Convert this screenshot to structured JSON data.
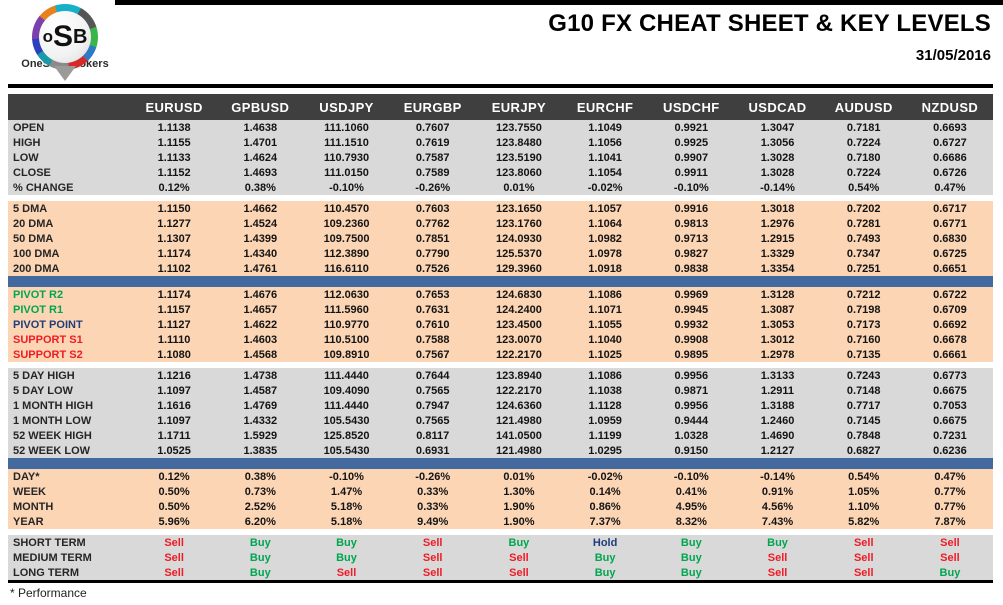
{
  "header": {
    "logo_text_o": "o",
    "logo_text_s": "S",
    "logo_text_b": "B",
    "logo_caption": "OneStopBrokers",
    "title": "G10 FX CHEAT SHEET & KEY LEVELS",
    "date": "31/05/2016"
  },
  "footer": {
    "note": "* Performance"
  },
  "colors": {
    "header_bar": "#3f3f3f",
    "gray_section": "#d9d9d9",
    "peach_section": "#fcd5b4",
    "blue_bar": "#426a9e",
    "buy_green": "#00a550",
    "sell_red": "#ee1c25",
    "hold_navy": "#1f3d7a"
  },
  "table": {
    "columns": [
      "EURUSD",
      "GPBUSD",
      "USDJPY",
      "EURGBP",
      "EURJPY",
      "EURCHF",
      "USDCHF",
      "USDCAD",
      "AUDUSD",
      "NZDUSD"
    ],
    "sections": [
      {
        "id": "ohlc",
        "type": "rows",
        "bg": "gray",
        "rows": [
          {
            "label": "OPEN",
            "values": [
              "1.1138",
              "1.4638",
              "111.1060",
              "0.7607",
              "123.7550",
              "1.1049",
              "0.9921",
              "1.3047",
              "0.7181",
              "0.6693"
            ]
          },
          {
            "label": "HIGH",
            "values": [
              "1.1155",
              "1.4701",
              "111.1510",
              "0.7619",
              "123.8480",
              "1.1056",
              "0.9925",
              "1.3056",
              "0.7224",
              "0.6727"
            ]
          },
          {
            "label": "LOW",
            "values": [
              "1.1133",
              "1.4624",
              "110.7930",
              "0.7587",
              "123.5190",
              "1.1041",
              "0.9907",
              "1.3028",
              "0.7180",
              "0.6686"
            ]
          },
          {
            "label": "CLOSE",
            "values": [
              "1.1152",
              "1.4693",
              "111.0150",
              "0.7589",
              "123.8060",
              "1.1054",
              "0.9911",
              "1.3028",
              "0.7224",
              "0.6726"
            ]
          },
          {
            "label": "% CHANGE",
            "values": [
              "0.12%",
              "0.38%",
              "-0.10%",
              "-0.26%",
              "0.01%",
              "-0.02%",
              "-0.10%",
              "-0.14%",
              "0.54%",
              "0.47%"
            ]
          }
        ]
      },
      {
        "id": "gap1",
        "type": "gap"
      },
      {
        "id": "dma",
        "type": "rows",
        "bg": "peach",
        "rows": [
          {
            "label": "5 DMA",
            "values": [
              "1.1150",
              "1.4662",
              "110.4570",
              "0.7603",
              "123.1650",
              "1.1057",
              "0.9916",
              "1.3018",
              "0.7202",
              "0.6717"
            ]
          },
          {
            "label": "20 DMA",
            "values": [
              "1.1277",
              "1.4524",
              "109.2360",
              "0.7762",
              "123.1760",
              "1.1064",
              "0.9813",
              "1.2976",
              "0.7281",
              "0.6771"
            ]
          },
          {
            "label": "50 DMA",
            "values": [
              "1.1307",
              "1.4399",
              "109.7500",
              "0.7851",
              "124.0930",
              "1.0982",
              "0.9713",
              "1.2915",
              "0.7493",
              "0.6830"
            ]
          },
          {
            "label": "100 DMA",
            "values": [
              "1.1174",
              "1.4340",
              "112.3890",
              "0.7790",
              "125.5370",
              "1.0978",
              "0.9827",
              "1.3329",
              "0.7347",
              "0.6725"
            ]
          },
          {
            "label": "200 DMA",
            "values": [
              "1.1102",
              "1.4761",
              "116.6110",
              "0.7526",
              "129.3960",
              "1.0918",
              "0.9838",
              "1.3354",
              "0.7251",
              "0.6651"
            ]
          }
        ]
      },
      {
        "id": "bar1",
        "type": "bar"
      },
      {
        "id": "pivots",
        "type": "rows",
        "bg": "peach",
        "rows": [
          {
            "label": "PIVOT R2",
            "label_color": "green",
            "values": [
              "1.1174",
              "1.4676",
              "112.0630",
              "0.7653",
              "124.6830",
              "1.1086",
              "0.9969",
              "1.3128",
              "0.7212",
              "0.6722"
            ]
          },
          {
            "label": "PIVOT R1",
            "label_color": "green",
            "values": [
              "1.1157",
              "1.4657",
              "111.5960",
              "0.7631",
              "124.2400",
              "1.1071",
              "0.9945",
              "1.3087",
              "0.7198",
              "0.6709"
            ]
          },
          {
            "label": "PIVOT POINT",
            "label_color": "navy",
            "values": [
              "1.1127",
              "1.4622",
              "110.9770",
              "0.7610",
              "123.4500",
              "1.1055",
              "0.9932",
              "1.3053",
              "0.7173",
              "0.6692"
            ]
          },
          {
            "label": "SUPPORT S1",
            "label_color": "red",
            "values": [
              "1.1110",
              "1.4603",
              "110.5100",
              "0.7588",
              "123.0070",
              "1.1040",
              "0.9908",
              "1.3012",
              "0.7160",
              "0.6678"
            ]
          },
          {
            "label": "SUPPORT S2",
            "label_color": "red",
            "values": [
              "1.1080",
              "1.4568",
              "109.8910",
              "0.7567",
              "122.2170",
              "1.1025",
              "0.9895",
              "1.2978",
              "0.7135",
              "0.6661"
            ]
          }
        ]
      },
      {
        "id": "gap2",
        "type": "gap"
      },
      {
        "id": "ranges",
        "type": "rows",
        "bg": "gray",
        "rows": [
          {
            "label": "5 DAY HIGH",
            "values": [
              "1.1216",
              "1.4738",
              "111.4440",
              "0.7644",
              "123.8940",
              "1.1086",
              "0.9956",
              "1.3133",
              "0.7243",
              "0.6773"
            ]
          },
          {
            "label": "5 DAY LOW",
            "values": [
              "1.1097",
              "1.4587",
              "109.4090",
              "0.7565",
              "122.2170",
              "1.1038",
              "0.9871",
              "1.2911",
              "0.7148",
              "0.6675"
            ]
          },
          {
            "label": "1 MONTH HIGH",
            "values": [
              "1.1616",
              "1.4769",
              "111.4440",
              "0.7947",
              "124.6360",
              "1.1128",
              "0.9956",
              "1.3188",
              "0.7717",
              "0.7053"
            ]
          },
          {
            "label": "1 MONTH LOW",
            "values": [
              "1.1097",
              "1.4332",
              "105.5430",
              "0.7565",
              "121.4980",
              "1.0959",
              "0.9444",
              "1.2460",
              "0.7145",
              "0.6675"
            ]
          },
          {
            "label": "52 WEEK HIGH",
            "values": [
              "1.1711",
              "1.5929",
              "125.8520",
              "0.8117",
              "141.0500",
              "1.1199",
              "1.0328",
              "1.4690",
              "0.7848",
              "0.7231"
            ]
          },
          {
            "label": "52 WEEK LOW",
            "values": [
              "1.0525",
              "1.3835",
              "105.5430",
              "0.6931",
              "121.4980",
              "1.0295",
              "0.9150",
              "1.2127",
              "0.6827",
              "0.6236"
            ]
          }
        ]
      },
      {
        "id": "bar2",
        "type": "bar"
      },
      {
        "id": "performance",
        "type": "rows",
        "bg": "peach",
        "rows": [
          {
            "label": "DAY*",
            "values": [
              "0.12%",
              "0.38%",
              "-0.10%",
              "-0.26%",
              "0.01%",
              "-0.02%",
              "-0.10%",
              "-0.14%",
              "0.54%",
              "0.47%"
            ]
          },
          {
            "label": "WEEK",
            "values": [
              "0.50%",
              "0.73%",
              "1.47%",
              "0.33%",
              "1.30%",
              "0.14%",
              "0.41%",
              "0.91%",
              "1.05%",
              "0.77%"
            ]
          },
          {
            "label": "MONTH",
            "values": [
              "0.50%",
              "2.52%",
              "5.18%",
              "0.33%",
              "1.90%",
              "0.86%",
              "4.95%",
              "4.56%",
              "1.10%",
              "0.77%"
            ]
          },
          {
            "label": "YEAR",
            "values": [
              "5.96%",
              "6.20%",
              "5.18%",
              "9.49%",
              "1.90%",
              "7.37%",
              "8.32%",
              "7.43%",
              "5.82%",
              "7.87%"
            ]
          }
        ]
      },
      {
        "id": "gap3",
        "type": "gap"
      },
      {
        "id": "signals",
        "type": "rows",
        "bg": "gray",
        "signal_colors": true,
        "rows": [
          {
            "label": "SHORT TERM",
            "values": [
              "Sell",
              "Buy",
              "Buy",
              "Sell",
              "Buy",
              "Hold",
              "Buy",
              "Buy",
              "Sell",
              "Sell"
            ]
          },
          {
            "label": "MEDIUM TERM",
            "values": [
              "Sell",
              "Buy",
              "Buy",
              "Sell",
              "Sell",
              "Buy",
              "Buy",
              "Sell",
              "Sell",
              "Sell"
            ]
          },
          {
            "label": "LONG TERM",
            "values": [
              "Sell",
              "Buy",
              "Sell",
              "Sell",
              "Sell",
              "Buy",
              "Buy",
              "Sell",
              "Sell",
              "Buy"
            ]
          }
        ]
      }
    ]
  }
}
